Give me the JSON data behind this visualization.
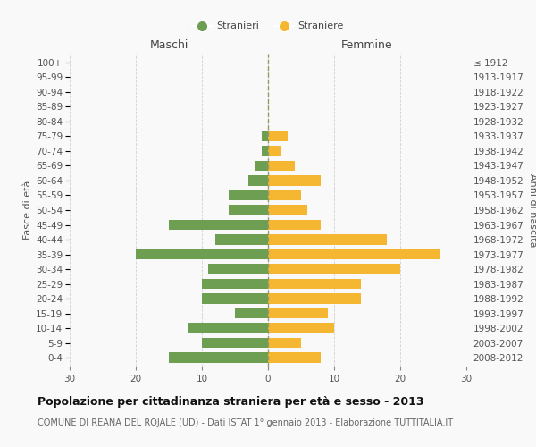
{
  "age_groups": [
    "0-4",
    "5-9",
    "10-14",
    "15-19",
    "20-24",
    "25-29",
    "30-34",
    "35-39",
    "40-44",
    "45-49",
    "50-54",
    "55-59",
    "60-64",
    "65-69",
    "70-74",
    "75-79",
    "80-84",
    "85-89",
    "90-94",
    "95-99",
    "100+"
  ],
  "birth_years": [
    "2008-2012",
    "2003-2007",
    "1998-2002",
    "1993-1997",
    "1988-1992",
    "1983-1987",
    "1978-1982",
    "1973-1977",
    "1968-1972",
    "1963-1967",
    "1958-1962",
    "1953-1957",
    "1948-1952",
    "1943-1947",
    "1938-1942",
    "1933-1937",
    "1928-1932",
    "1923-1927",
    "1918-1922",
    "1913-1917",
    "≤ 1912"
  ],
  "males": [
    15,
    10,
    12,
    5,
    10,
    10,
    9,
    20,
    8,
    15,
    6,
    6,
    3,
    2,
    1,
    1,
    0,
    0,
    0,
    0,
    0
  ],
  "females": [
    8,
    5,
    10,
    9,
    14,
    14,
    20,
    26,
    18,
    8,
    6,
    5,
    8,
    4,
    2,
    3,
    0,
    0,
    0,
    0,
    0
  ],
  "male_color": "#6d9e52",
  "female_color": "#f5b731",
  "title": "Popolazione per cittadinanza straniera per età e sesso - 2013",
  "subtitle": "COMUNE DI REANA DEL ROJALE (UD) - Dati ISTAT 1° gennaio 2013 - Elaborazione TUTTITALIA.IT",
  "ylabel_left": "Fasce di età",
  "ylabel_right": "Anni di nascita",
  "xlabel_maschi": "Maschi",
  "xlabel_femmine": "Femmine",
  "legend_maschi": "Stranieri",
  "legend_femmine": "Straniere",
  "xlim": 30,
  "background_color": "#f9f9f9",
  "grid_color": "#d0d0d0",
  "dashed_line_color": "#999966",
  "title_fontsize": 9,
  "subtitle_fontsize": 7,
  "header_fontsize": 9,
  "tick_fontsize": 7.5,
  "ylabel_fontsize": 8
}
